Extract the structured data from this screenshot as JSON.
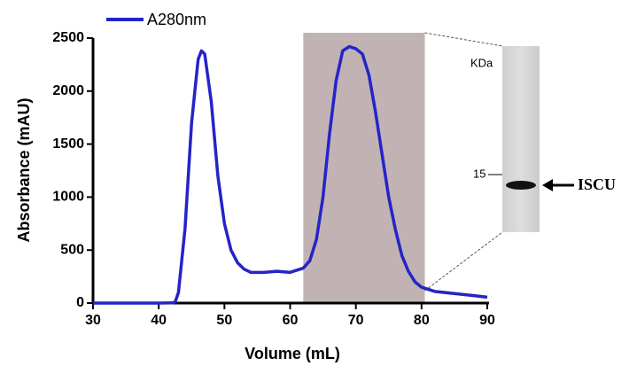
{
  "chart_data": {
    "type": "line",
    "xlabel": "Volume (mL)",
    "ylabel": "Absorbance (mAU)",
    "xlim": [
      30,
      90
    ],
    "ylim": [
      0,
      2500
    ],
    "xticks": [
      30,
      40,
      50,
      60,
      70,
      80,
      90
    ],
    "yticks": [
      0,
      500,
      1000,
      1500,
      2000,
      2500
    ],
    "x": [
      30,
      35,
      40,
      42,
      42.5,
      43,
      44,
      45,
      46,
      46.5,
      47,
      48,
      49,
      50,
      51,
      52,
      53,
      54,
      56,
      58,
      60,
      62,
      63,
      64,
      65,
      66,
      67,
      68,
      69,
      70,
      71,
      72,
      73,
      74,
      75,
      76,
      77,
      78,
      79,
      80,
      82,
      85,
      88,
      90
    ],
    "series": [
      {
        "name": "A280nm",
        "color": "#2424c8",
        "values": [
          0,
          0,
          0,
          2,
          10,
          100,
          700,
          1700,
          2300,
          2380,
          2350,
          1900,
          1200,
          750,
          500,
          380,
          320,
          290,
          290,
          300,
          290,
          330,
          400,
          600,
          1000,
          1600,
          2100,
          2380,
          2420,
          2400,
          2350,
          2150,
          1800,
          1400,
          1000,
          700,
          450,
          300,
          200,
          150,
          110,
          90,
          70,
          55
        ]
      }
    ],
    "highlight": {
      "x": [
        62,
        80.5
      ],
      "color": "#c1b3b3"
    },
    "inset": {
      "unit_label": "KDa",
      "marker": 15,
      "protein": "ISCU"
    }
  }
}
